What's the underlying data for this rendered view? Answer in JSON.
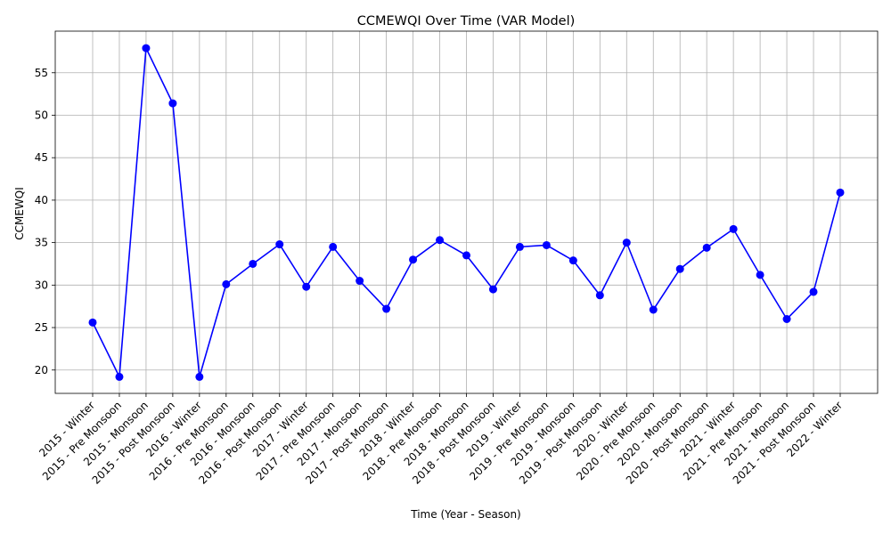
{
  "chart_data": {
    "type": "line",
    "title": "CCMEWQI Over Time (VAR Model)",
    "xlabel": "Time (Year - Season)",
    "ylabel": "CCMEWQI",
    "categories": [
      "2015 - Winter",
      "2015 - Pre Monsoon",
      "2015 - Monsoon",
      "2015 - Post Monsoon",
      "2016 - Winter",
      "2016 - Pre Monsoon",
      "2016 - Monsoon",
      "2016 - Post Monsoon",
      "2017 - Winter",
      "2017 - Pre Monsoon",
      "2017 - Monsoon",
      "2017 - Post Monsoon",
      "2018 - Winter",
      "2018 - Pre Monsoon",
      "2018 - Monsoon",
      "2018 - Post Monsoon",
      "2019 - Winter",
      "2019 - Pre Monsoon",
      "2019 - Monsoon",
      "2019 - Post Monsoon",
      "2020 - Winter",
      "2020 - Pre Monsoon",
      "2020 - Monsoon",
      "2020 - Post Monsoon",
      "2021 - Winter",
      "2021 - Pre Monsoon",
      "2021 - Monsoon",
      "2021 - Post Monsoon",
      "2022 - Winter"
    ],
    "series": [
      {
        "color": "#0000ff",
        "marker": "circle",
        "values": [
          25.6,
          19.2,
          57.9,
          51.4,
          19.2,
          30.1,
          32.5,
          34.8,
          29.8,
          34.5,
          30.5,
          27.2,
          33.0,
          35.3,
          33.5,
          29.5,
          34.5,
          34.7,
          32.9,
          28.8,
          35.0,
          27.1,
          31.9,
          34.4,
          36.6,
          31.2,
          26.0,
          29.2,
          40.9
        ]
      }
    ],
    "yticks": [
      20,
      25,
      30,
      35,
      40,
      45,
      50,
      55
    ],
    "ylim": [
      17.25,
      59.9
    ],
    "grid": true,
    "legend": "none"
  }
}
